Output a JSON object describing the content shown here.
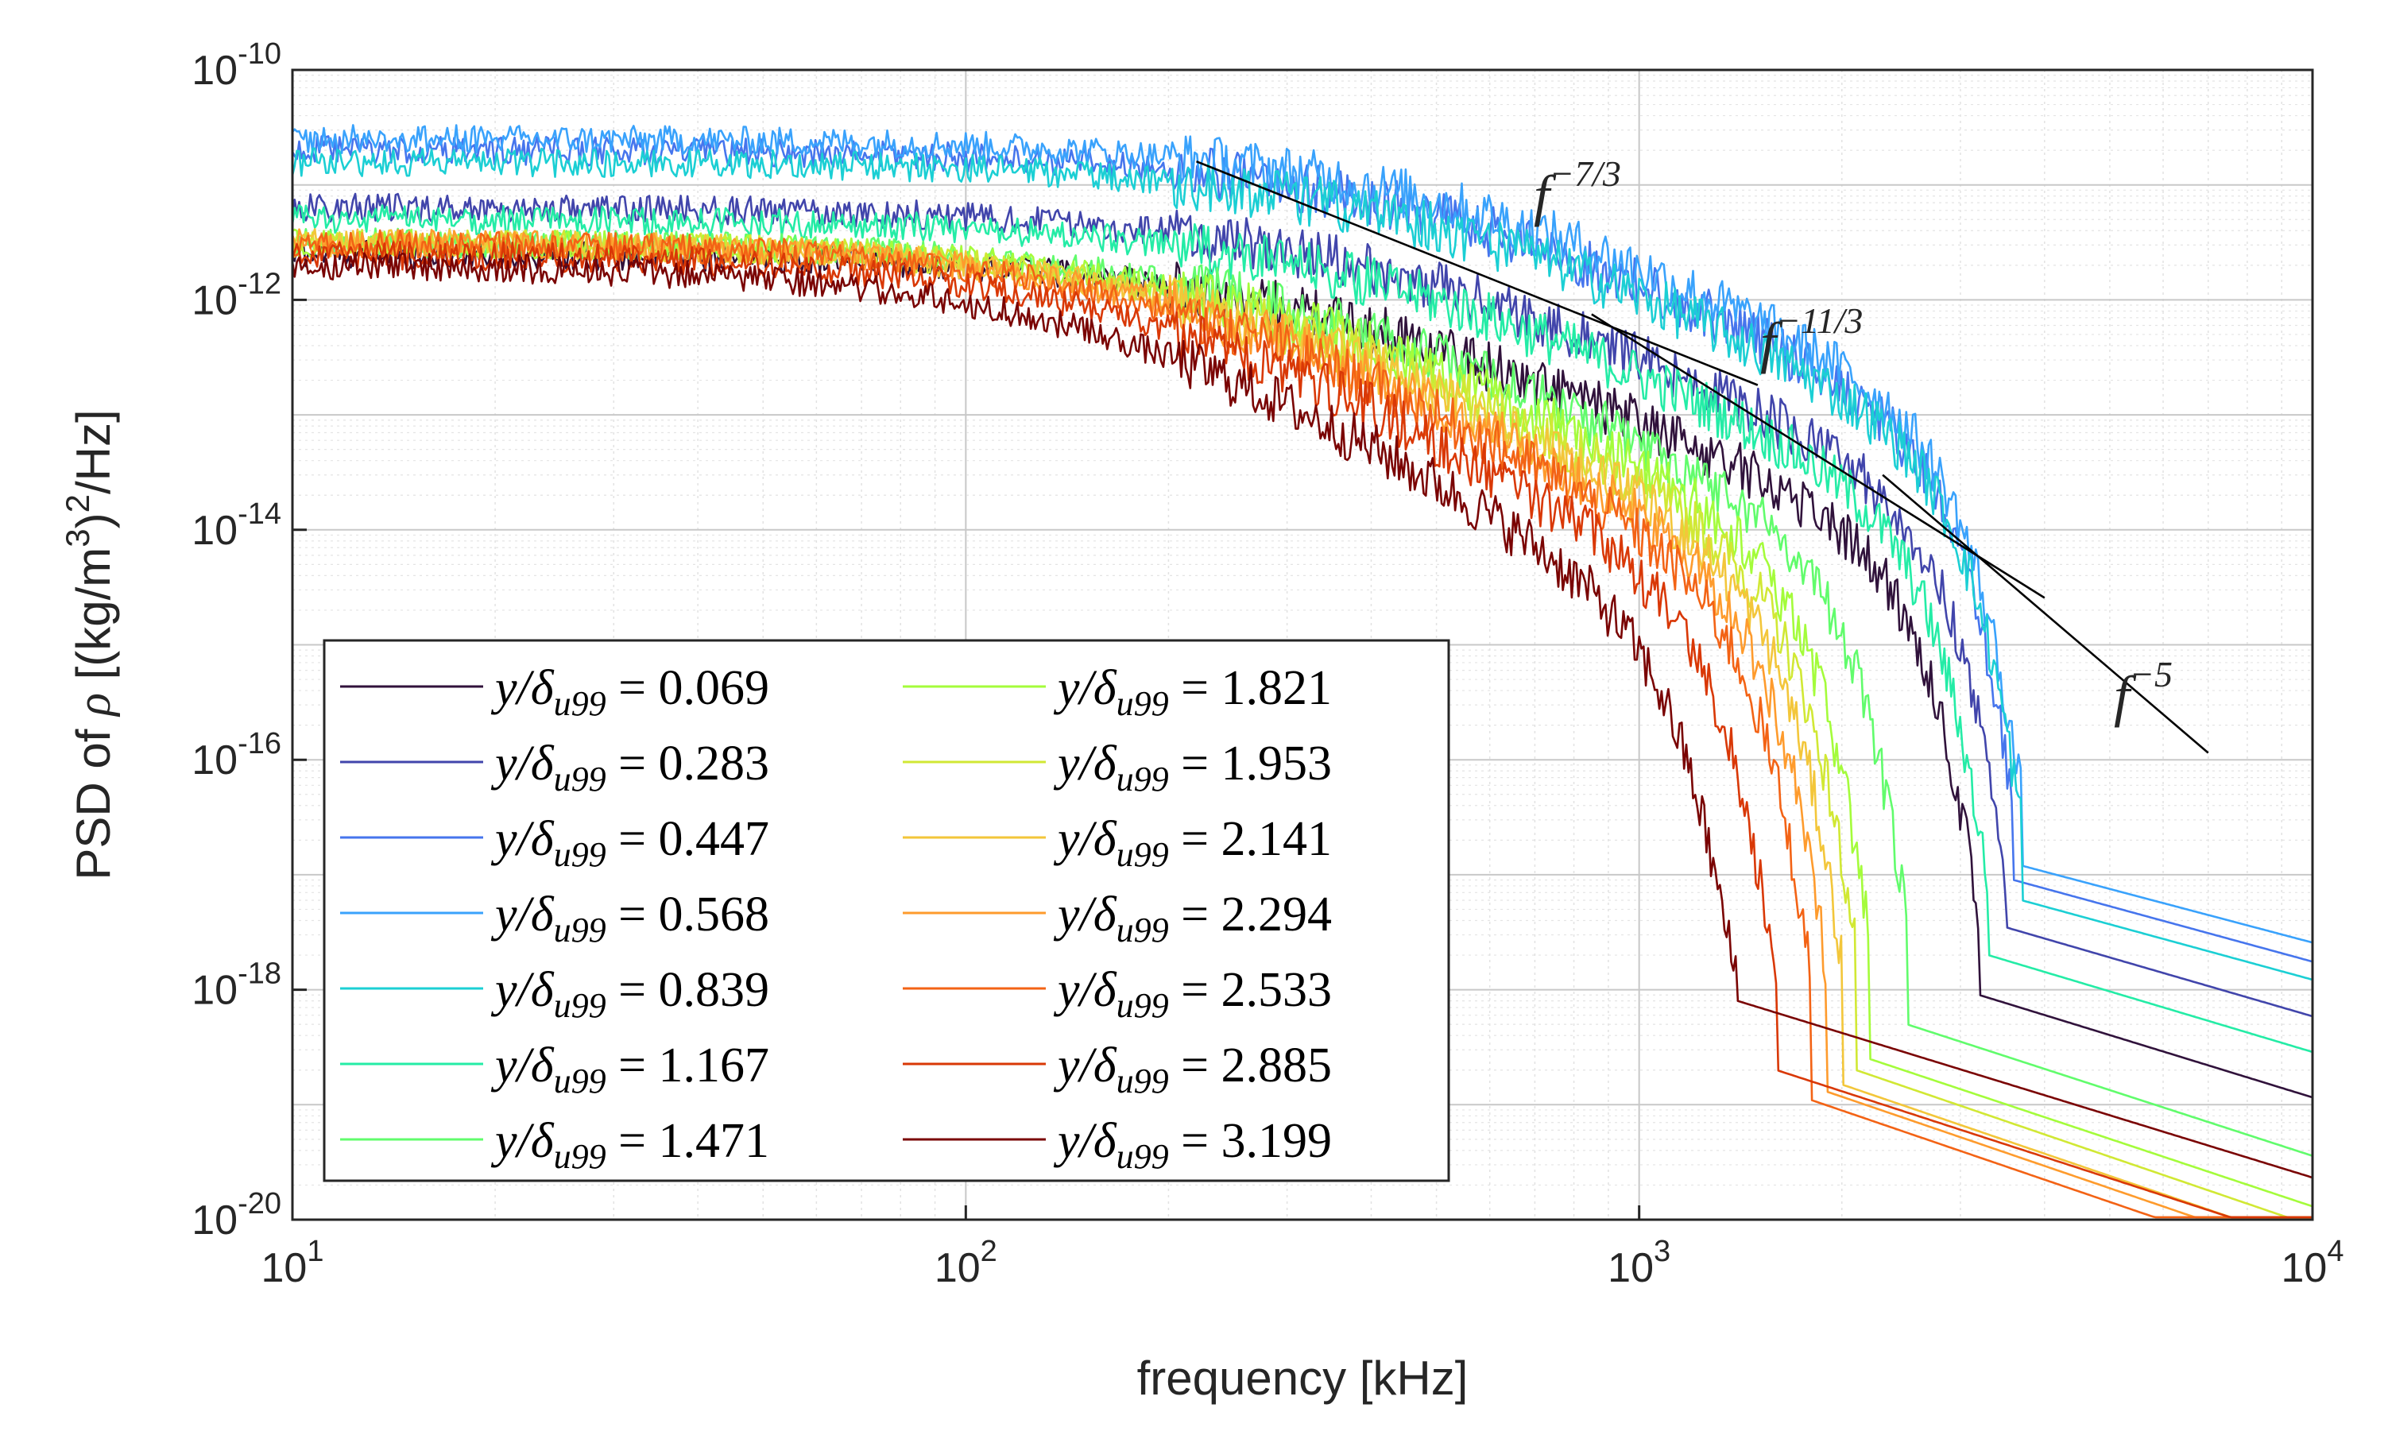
{
  "chart_data": {
    "type": "line",
    "xscale": "log",
    "yscale": "log",
    "xlim": [
      10,
      10000
    ],
    "ylim": [
      1e-20,
      1e-10
    ],
    "grid": true,
    "xlabel": "frequency [kHz]",
    "ylabel": {
      "prefix": "PSD of ",
      "symbol": "ρ",
      "unit_open": " [(kg/m",
      "sup1": "3",
      "close": ")",
      "sup2": "2",
      "unit_end": "/Hz]"
    },
    "xticks": [
      {
        "base": "10",
        "exp": "1",
        "value": 10
      },
      {
        "base": "10",
        "exp": "2",
        "value": 100
      },
      {
        "base": "10",
        "exp": "3",
        "value": 1000
      },
      {
        "base": "10",
        "exp": "4",
        "value": 10000
      }
    ],
    "yticks": [
      {
        "base": "10",
        "exp": "-10",
        "value": 1e-10
      },
      {
        "base": "10",
        "exp": "-12",
        "value": 1e-12
      },
      {
        "base": "10",
        "exp": "-14",
        "value": 1e-14
      },
      {
        "base": "10",
        "exp": "-16",
        "value": 1e-16
      },
      {
        "base": "10",
        "exp": "-18",
        "value": 1e-18
      },
      {
        "base": "10",
        "exp": "-20",
        "value": 1e-20
      }
    ],
    "legend": {
      "placement": "lower-left",
      "columns": 2,
      "label_prefix": "y/δ",
      "label_sub": "u99",
      "label_eq": " = "
    },
    "series": [
      {
        "name": "0.069",
        "color": "#30123b",
        "low": -11.6,
        "knee": 330,
        "slope": 2.8,
        "floor": 9e-19,
        "fend": 3200,
        "tail": 1.8
      },
      {
        "name": "0.283",
        "color": "#4145ab",
        "low": -11.2,
        "knee": 420,
        "slope": 3.0,
        "floor": 3.5e-18,
        "fend": 3500,
        "tail": 1.7
      },
      {
        "name": "0.447",
        "color": "#4675ed",
        "low": -10.7,
        "knee": 520,
        "slope": 3.2,
        "floor": 9e-18,
        "fend": 3600,
        "tail": 1.6
      },
      {
        "name": "0.568",
        "color": "#39a2fc",
        "low": -10.6,
        "knee": 560,
        "slope": 3.3,
        "floor": 1.2e-17,
        "fend": 3700,
        "tail": 1.55
      },
      {
        "name": "0.839",
        "color": "#1bcfd4",
        "low": -10.8,
        "knee": 520,
        "slope": 3.2,
        "floor": 6e-18,
        "fend": 3700,
        "tail": 1.6
      },
      {
        "name": "1.167",
        "color": "#24eca6",
        "low": -11.3,
        "knee": 420,
        "slope": 3.1,
        "floor": 2e-18,
        "fend": 3300,
        "tail": 1.75
      },
      {
        "name": "1.471",
        "color": "#61fc6c",
        "low": -11.5,
        "knee": 300,
        "slope": 3.1,
        "floor": 5e-19,
        "fend": 2500,
        "tail": 1.9
      },
      {
        "name": "1.821",
        "color": "#a4fc3b",
        "low": -11.5,
        "knee": 280,
        "slope": 3.3,
        "floor": 2.5e-19,
        "fend": 2200,
        "tail": 1.95
      },
      {
        "name": "1.953",
        "color": "#d1e834",
        "low": -11.5,
        "knee": 260,
        "slope": 3.4,
        "floor": 2e-19,
        "fend": 2100,
        "tail": 2.0
      },
      {
        "name": "2.141",
        "color": "#f3c63a",
        "low": -11.5,
        "knee": 250,
        "slope": 3.5,
        "floor": 1.5e-19,
        "fend": 2000,
        "tail": 2.0
      },
      {
        "name": "2.294",
        "color": "#fe9b2d",
        "low": -11.5,
        "knee": 240,
        "slope": 3.6,
        "floor": 1.3e-19,
        "fend": 1900,
        "tail": 2.0
      },
      {
        "name": "2.533",
        "color": "#f36315",
        "low": -11.5,
        "knee": 230,
        "slope": 3.7,
        "floor": 1.1e-19,
        "fend": 1800,
        "tail": 2.0
      },
      {
        "name": "2.885",
        "color": "#d93806",
        "low": -11.6,
        "knee": 215,
        "slope": 3.8,
        "floor": 2e-19,
        "fend": 1600,
        "tail": 1.9
      },
      {
        "name": "3.199",
        "color": "#7a0403",
        "low": -11.7,
        "knee": 190,
        "slope": 4.0,
        "floor": 8e-19,
        "fend": 1400,
        "tail": 1.8
      }
    ],
    "reference_lines": [
      {
        "label_base": "f",
        "label_exp": "−7/3",
        "exp": -2.3333,
        "x": [
          220,
          1500
        ],
        "y0": 1.6e-11
      },
      {
        "label_base": "f",
        "label_exp": "−11/3",
        "exp": -3.6667,
        "x": [
          850,
          4000
        ],
        "y0": 7.5e-13
      },
      {
        "label_base": "f",
        "label_exp": "−5",
        "exp": -5.0,
        "x": [
          2300,
          7000
        ],
        "y0": 3e-14
      }
    ]
  }
}
